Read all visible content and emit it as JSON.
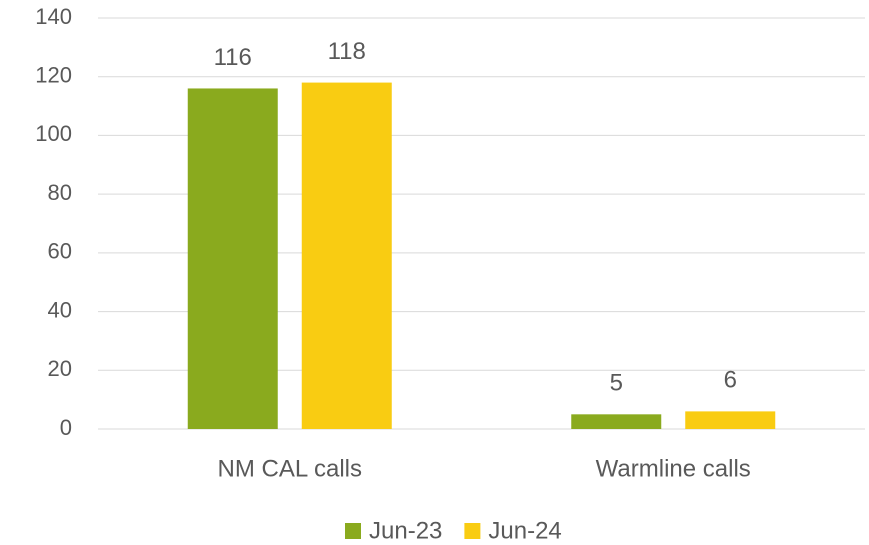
{
  "chart_data": {
    "type": "bar",
    "categories": [
      "NM CAL calls",
      "Warmline calls"
    ],
    "series": [
      {
        "name": "Jun-23",
        "color": "#8aaa1e",
        "values": [
          116,
          5
        ]
      },
      {
        "name": "Jun-24",
        "color": "#f9cc12",
        "values": [
          118,
          6
        ]
      }
    ],
    "ylim": [
      0,
      140
    ],
    "yticks": [
      0,
      20,
      40,
      60,
      80,
      100,
      120,
      140
    ],
    "grid": true,
    "legend": "bottom",
    "data_labels": true
  }
}
